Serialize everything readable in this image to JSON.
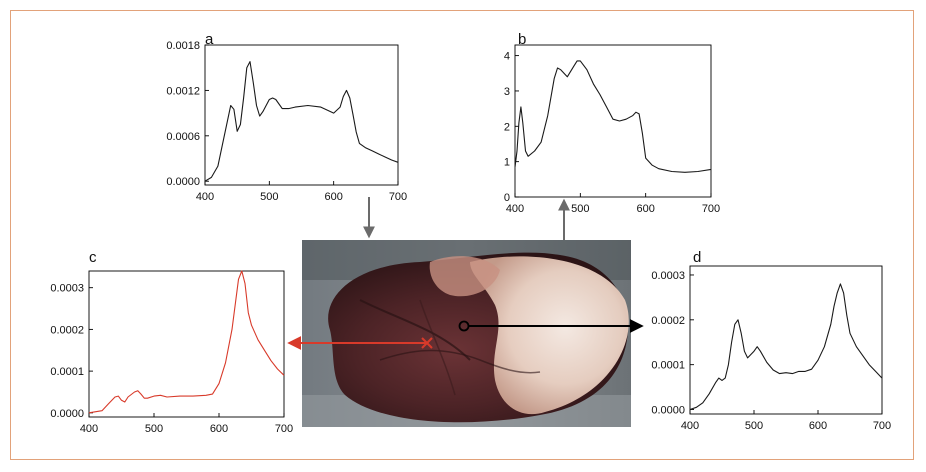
{
  "colors": {
    "frame": "#e2a27a",
    "axis": "#000000",
    "black_curve": "#1a1a1a",
    "red_curve": "#d83a2a",
    "gray_arrow": "#6b6b6b"
  },
  "photo": {
    "subject": "heart tissue photograph",
    "markers": [
      {
        "name": "red-cross-marker",
        "color": "#d83a2a",
        "shape": "cross"
      },
      {
        "name": "black-circle-marker",
        "color": "#000000",
        "shape": "circle"
      }
    ]
  },
  "chart_data": [
    {
      "id": "a",
      "panel_label": "a",
      "type": "line",
      "xlim": [
        400,
        700
      ],
      "ylim": [
        -5e-05,
        0.0018
      ],
      "xticks": [
        400,
        500,
        600,
        700
      ],
      "yticks": [
        0.0,
        0.0006,
        0.0012,
        0.0018
      ],
      "ytick_labels": [
        "0.0000",
        "0.0006",
        "0.0012",
        "0.0018"
      ],
      "xlabel": "",
      "ylabel": "",
      "color": "#1a1a1a",
      "x": [
        400,
        410,
        420,
        430,
        440,
        445,
        450,
        455,
        460,
        465,
        470,
        475,
        480,
        485,
        490,
        500,
        505,
        510,
        520,
        530,
        540,
        560,
        580,
        600,
        610,
        615,
        620,
        625,
        630,
        635,
        640,
        650,
        660,
        670,
        680,
        690,
        700
      ],
      "y": [
        0.0,
        5e-05,
        0.0002,
        0.0006,
        0.001,
        0.00095,
        0.00066,
        0.00075,
        0.0011,
        0.0015,
        0.00158,
        0.0013,
        0.001,
        0.00086,
        0.00092,
        0.00108,
        0.0011,
        0.00108,
        0.00096,
        0.00096,
        0.00098,
        0.001,
        0.00098,
        0.0009,
        0.00098,
        0.00112,
        0.0012,
        0.0011,
        0.00088,
        0.00065,
        0.0005,
        0.00044,
        0.0004,
        0.00036,
        0.00032,
        0.00028,
        0.00025
      ]
    },
    {
      "id": "b",
      "panel_label": "b",
      "type": "line",
      "xlim": [
        400,
        700
      ],
      "ylim": [
        0,
        4.3
      ],
      "xticks": [
        400,
        500,
        600,
        700
      ],
      "yticks": [
        0,
        1,
        2,
        3,
        4
      ],
      "ytick_labels": [
        "0",
        "1",
        "2",
        "3",
        "4"
      ],
      "xlabel": "",
      "ylabel": "",
      "color": "#1a1a1a",
      "x": [
        400,
        403,
        406,
        409,
        412,
        416,
        420,
        430,
        440,
        450,
        460,
        465,
        470,
        480,
        490,
        495,
        500,
        510,
        520,
        530,
        540,
        550,
        560,
        570,
        580,
        585,
        590,
        595,
        600,
        610,
        620,
        640,
        660,
        680,
        700
      ],
      "y": [
        0.85,
        1.3,
        2.1,
        2.55,
        2.1,
        1.3,
        1.15,
        1.3,
        1.55,
        2.3,
        3.35,
        3.65,
        3.6,
        3.4,
        3.7,
        3.85,
        3.85,
        3.6,
        3.2,
        2.9,
        2.55,
        2.2,
        2.15,
        2.2,
        2.3,
        2.4,
        2.35,
        1.8,
        1.1,
        0.9,
        0.8,
        0.72,
        0.7,
        0.72,
        0.78
      ]
    },
    {
      "id": "c",
      "panel_label": "c",
      "type": "line",
      "xlim": [
        400,
        700
      ],
      "ylim": [
        -1e-05,
        0.00034
      ],
      "xticks": [
        400,
        500,
        600,
        700
      ],
      "yticks": [
        0.0,
        0.0001,
        0.0002,
        0.0003
      ],
      "ytick_labels": [
        "0.0000",
        "0.0001",
        "0.0002",
        "0.0003"
      ],
      "xlabel": "",
      "ylabel": "",
      "color": "#d83a2a",
      "x": [
        400,
        420,
        430,
        440,
        445,
        450,
        455,
        460,
        470,
        475,
        480,
        485,
        490,
        500,
        510,
        520,
        540,
        560,
        580,
        590,
        600,
        610,
        620,
        630,
        635,
        640,
        645,
        650,
        660,
        670,
        680,
        690,
        700
      ],
      "y": [
        0.0,
        5e-06,
        2.2e-05,
        3.8e-05,
        4e-05,
        3e-05,
        2.6e-05,
        3.8e-05,
        5e-05,
        5.3e-05,
        4.5e-05,
        3.5e-05,
        3.5e-05,
        4e-05,
        4.2e-05,
        3.8e-05,
        4e-05,
        4e-05,
        4.2e-05,
        4.5e-05,
        7e-05,
        0.00012,
        0.0002,
        0.00032,
        0.00034,
        0.00031,
        0.00024,
        0.00021,
        0.000175,
        0.00015,
        0.000125,
        0.000105,
        9e-05
      ]
    },
    {
      "id": "d",
      "panel_label": "d",
      "type": "line",
      "xlim": [
        400,
        700
      ],
      "ylim": [
        -1e-05,
        0.00032
      ],
      "xticks": [
        400,
        500,
        600,
        700
      ],
      "yticks": [
        0.0,
        0.0001,
        0.0002,
        0.0003
      ],
      "ytick_labels": [
        "0.0000",
        "0.0001",
        "0.0002",
        "0.0003"
      ],
      "xlabel": "",
      "ylabel": "",
      "color": "#1a1a1a",
      "x": [
        400,
        410,
        420,
        430,
        440,
        445,
        450,
        455,
        460,
        465,
        470,
        475,
        480,
        485,
        490,
        500,
        505,
        510,
        520,
        530,
        540,
        550,
        560,
        570,
        580,
        590,
        600,
        610,
        620,
        625,
        630,
        635,
        640,
        645,
        650,
        660,
        670,
        680,
        690,
        700
      ],
      "y": [
        0.0,
        5e-06,
        1.5e-05,
        3.5e-05,
        6e-05,
        7e-05,
        6.5e-05,
        7e-05,
        0.0001,
        0.00015,
        0.00019,
        0.0002,
        0.00017,
        0.00013,
        0.000115,
        0.00013,
        0.00014,
        0.00013,
        0.000105,
        8.8e-05,
        8e-05,
        8.2e-05,
        8e-05,
        8.5e-05,
        8.5e-05,
        9e-05,
        0.00011,
        0.00014,
        0.00019,
        0.00023,
        0.00026,
        0.00028,
        0.00026,
        0.00021,
        0.00017,
        0.00014,
        0.00012,
        0.0001,
        8.5e-05,
        7e-05
      ]
    }
  ]
}
